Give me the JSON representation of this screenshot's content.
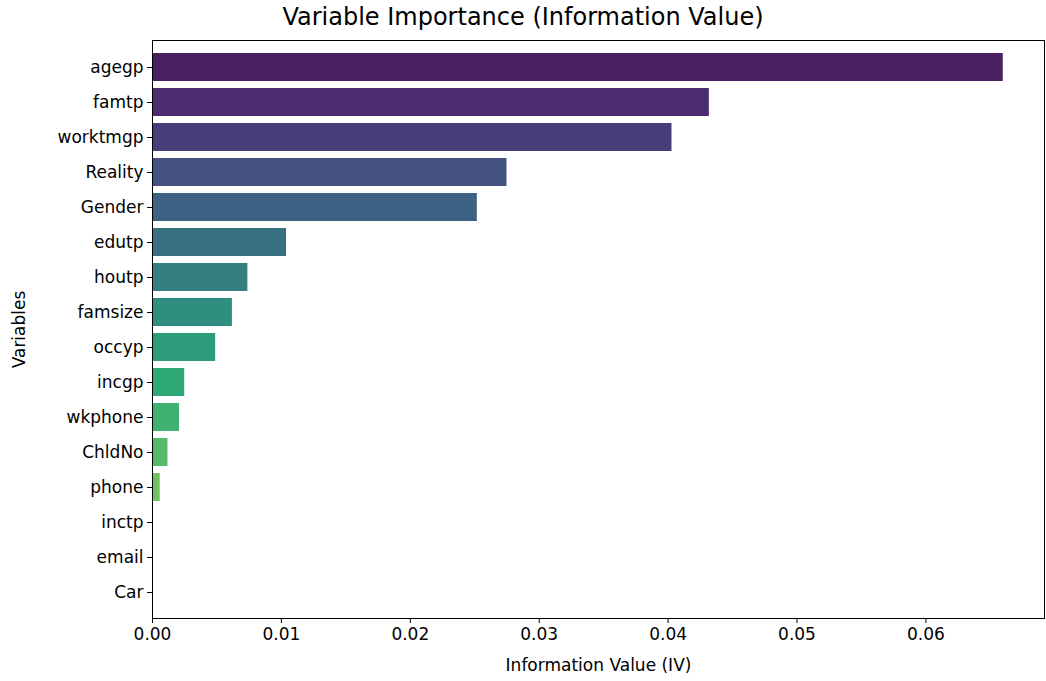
{
  "chart_data": {
    "type": "bar",
    "orientation": "horizontal",
    "title": "Variable Importance (Information Value)",
    "x_label": "Information Value (IV)",
    "y_label": "Variables",
    "categories": [
      "agegp",
      "famtp",
      "worktmgp",
      "Reality",
      "Gender",
      "edutp",
      "houtp",
      "famsize",
      "occyp",
      "incgp",
      "wkphone",
      "ChldNo",
      "phone",
      "inctp",
      "email",
      "Car"
    ],
    "values": [
      0.066,
      0.0432,
      0.0403,
      0.0275,
      0.0252,
      0.0104,
      0.0074,
      0.0062,
      0.0049,
      0.0025,
      0.0021,
      0.0012,
      0.0006,
      0.0,
      0.0,
      0.0
    ],
    "colors": [
      "#4a2160",
      "#4a2c6f",
      "#483e7a",
      "#43527f",
      "#3e6283",
      "#397182",
      "#357f81",
      "#2f8e80",
      "#2c9c7c",
      "#2fa878",
      "#3fb173",
      "#57b96a",
      "#6fc162",
      "#8fc85a",
      "#b0cd55",
      "#d4d253"
    ],
    "xlim": [
      0,
      0.0692
    ],
    "xticks": [
      {
        "value": 0,
        "label": "0.00"
      },
      {
        "value": 0.01,
        "label": "0.01"
      },
      {
        "value": 0.02,
        "label": "0.02"
      },
      {
        "value": 0.03,
        "label": "0.03"
      },
      {
        "value": 0.04,
        "label": "0.04"
      },
      {
        "value": 0.05,
        "label": "0.05"
      },
      {
        "value": 0.06,
        "label": "0.06"
      }
    ],
    "grid": false
  }
}
